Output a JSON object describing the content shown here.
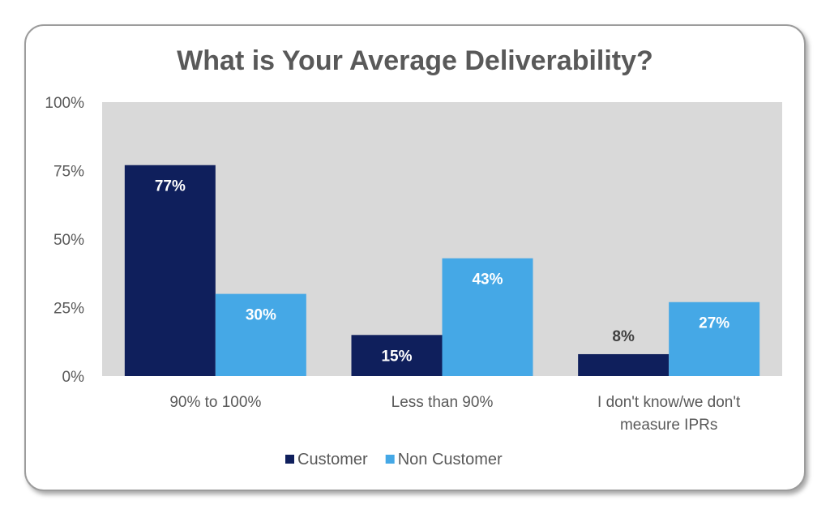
{
  "chart_data": {
    "type": "bar",
    "title": "What is Your Average Deliverability?",
    "categories": [
      [
        "90% to 100%"
      ],
      [
        "Less than 90%"
      ],
      [
        "I don't know/we don't",
        "measure IPRs"
      ]
    ],
    "series": [
      {
        "name": "Customer",
        "values": [
          77,
          15,
          8
        ],
        "labels": [
          "77%",
          "15%",
          "8%"
        ],
        "color": "#0f1f5c"
      },
      {
        "name": "Non Customer",
        "values": [
          30,
          43,
          27
        ],
        "labels": [
          "30%",
          "43%",
          "27%"
        ],
        "color": "#45a8e6"
      }
    ],
    "yticks": [
      0,
      25,
      50,
      75,
      100
    ],
    "ytick_labels": [
      "0%",
      "25%",
      "50%",
      "75%",
      "100%"
    ],
    "ylim": [
      0,
      100
    ],
    "xlabel": "",
    "ylabel": "",
    "legend_position": "bottom",
    "plot_background": "#d9d9d9",
    "label_color_inside": "#ffffff",
    "label_color_outside": "#404040"
  }
}
